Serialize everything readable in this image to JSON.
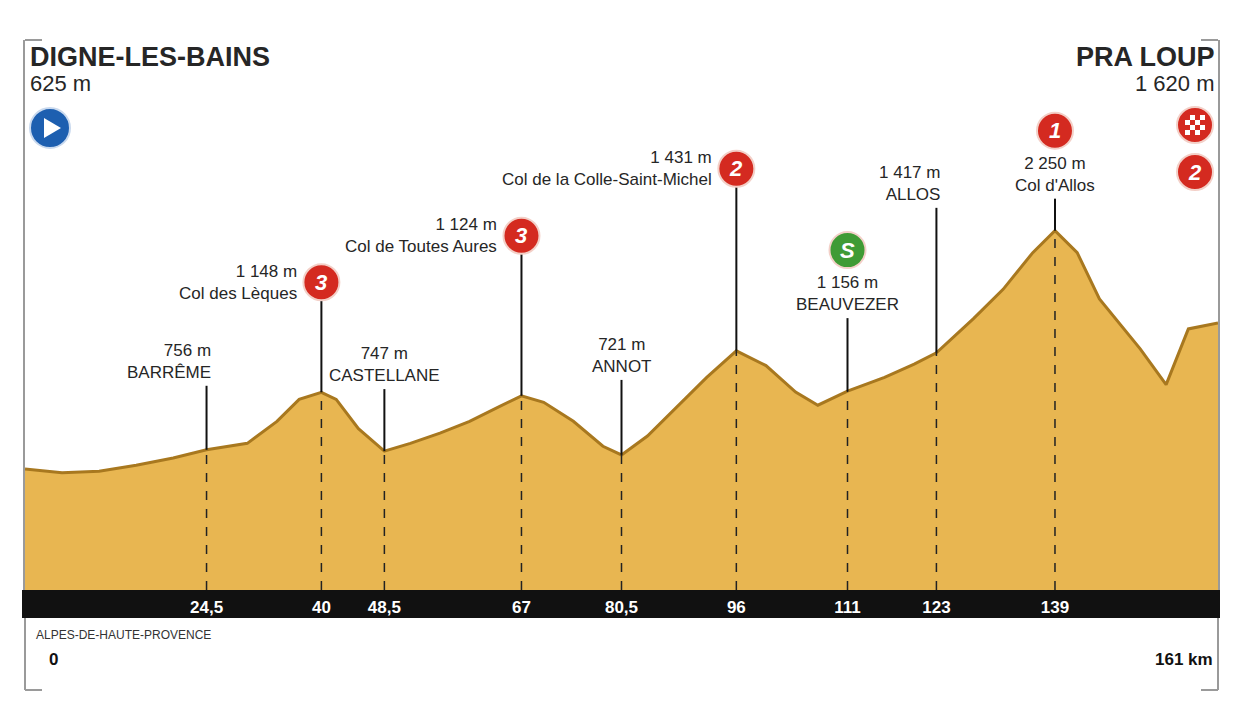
{
  "chart_data": {
    "type": "area",
    "subtitle": "ALPES-DE-HAUTE-PROVENCE",
    "x": [
      0,
      5,
      10,
      15,
      20,
      24.5,
      30,
      34,
      37,
      40,
      42,
      45,
      48.5,
      52,
      56,
      60,
      64,
      67,
      70,
      74,
      78,
      80.5,
      84,
      88,
      92,
      96,
      100,
      104,
      107,
      111,
      116,
      120,
      123,
      128,
      132,
      136,
      139,
      142,
      145,
      150.5,
      154,
      157,
      161
    ],
    "values": [
      625,
      600,
      610,
      650,
      700,
      756,
      800,
      950,
      1100,
      1148,
      1100,
      900,
      747,
      800,
      870,
      950,
      1050,
      1124,
      1080,
      950,
      780,
      721,
      850,
      1050,
      1250,
      1431,
      1330,
      1150,
      1060,
      1156,
      1250,
      1340,
      1417,
      1650,
      1850,
      2100,
      2250,
      2100,
      1785,
      1444,
      1200,
      1580,
      1620
    ],
    "value_labels": [
      "625 m",
      null,
      null,
      null,
      null,
      "756 m",
      null,
      null,
      null,
      "1 148 m",
      null,
      null,
      "747 m",
      null,
      null,
      null,
      null,
      "1 124 m",
      null,
      null,
      null,
      "721 m",
      null,
      null,
      null,
      "1 431 m",
      null,
      null,
      null,
      "1 156 m",
      null,
      null,
      "1 417 m",
      null,
      null,
      null,
      "2 250 m",
      null,
      null,
      null,
      null,
      null,
      "1 620 m"
    ],
    "data_labels": true,
    "color": "#e8b651",
    "xlim": [
      0,
      161
    ],
    "xticks": [
      0,
      {
        "value": 24.5,
        "label": "24,5"
      },
      40,
      {
        "value": 48.5,
        "label": "48,5"
      },
      67,
      {
        "value": 80.5,
        "label": "80,5"
      },
      96,
      111,
      123,
      139,
      {
        "value": 161,
        "label": "161 km"
      }
    ],
    "ylim": [
      -200,
      3550
    ],
    "tick_labels": "x",
    "grid": false,
    "annotations": [
      {
        "x": 0,
        "text": "DIGNE-LES-BAINS"
      },
      {
        "x": 24.5,
        "text": "BARRÊME"
      },
      {
        "x": 40,
        "text": "Col des Lèques",
        "category": "3",
        "color": "#d42a20"
      },
      {
        "x": 48.5,
        "text": "CASTELLANE"
      },
      {
        "x": 67,
        "text": "Col de Toutes Aures",
        "category": "3",
        "color": "#d42a20"
      },
      {
        "x": 80.5,
        "text": "ANNOT"
      },
      {
        "x": 96,
        "text": "Col de la Colle-Saint-Michel",
        "category": "2",
        "color": "#d42a20"
      },
      {
        "x": 111,
        "text": "BEAUVEZER",
        "category": "S",
        "color": "#3f9b35"
      },
      {
        "x": 123,
        "text": "ALLOS"
      },
      {
        "x": 139,
        "text": "Col d'Allos",
        "category": "1",
        "color": "#d42a20"
      },
      {
        "x": 161,
        "text": "PRA LOUP",
        "category": "2",
        "color": "#d42a20"
      }
    ]
  }
}
